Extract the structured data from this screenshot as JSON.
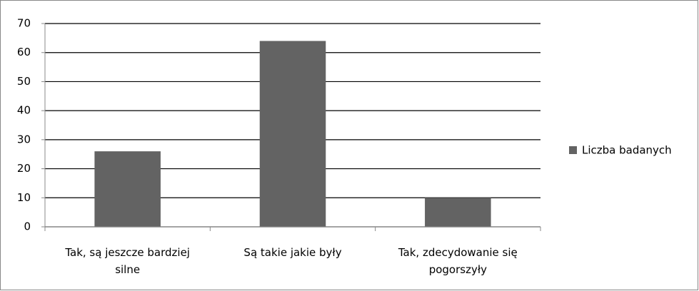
{
  "chart_data": {
    "type": "bar",
    "categories": [
      "Tak, są jeszcze bardziej silne",
      "Są takie jakie były",
      "Tak, zdecydowanie się pogorszyły"
    ],
    "series": [
      {
        "name": "Liczba badanych",
        "color": "#636363",
        "values": [
          26,
          64,
          10
        ]
      }
    ],
    "ylim": [
      0,
      70
    ],
    "yticks": [
      0,
      10,
      20,
      30,
      40,
      50,
      60,
      70
    ],
    "grid": true,
    "legend": "right"
  }
}
